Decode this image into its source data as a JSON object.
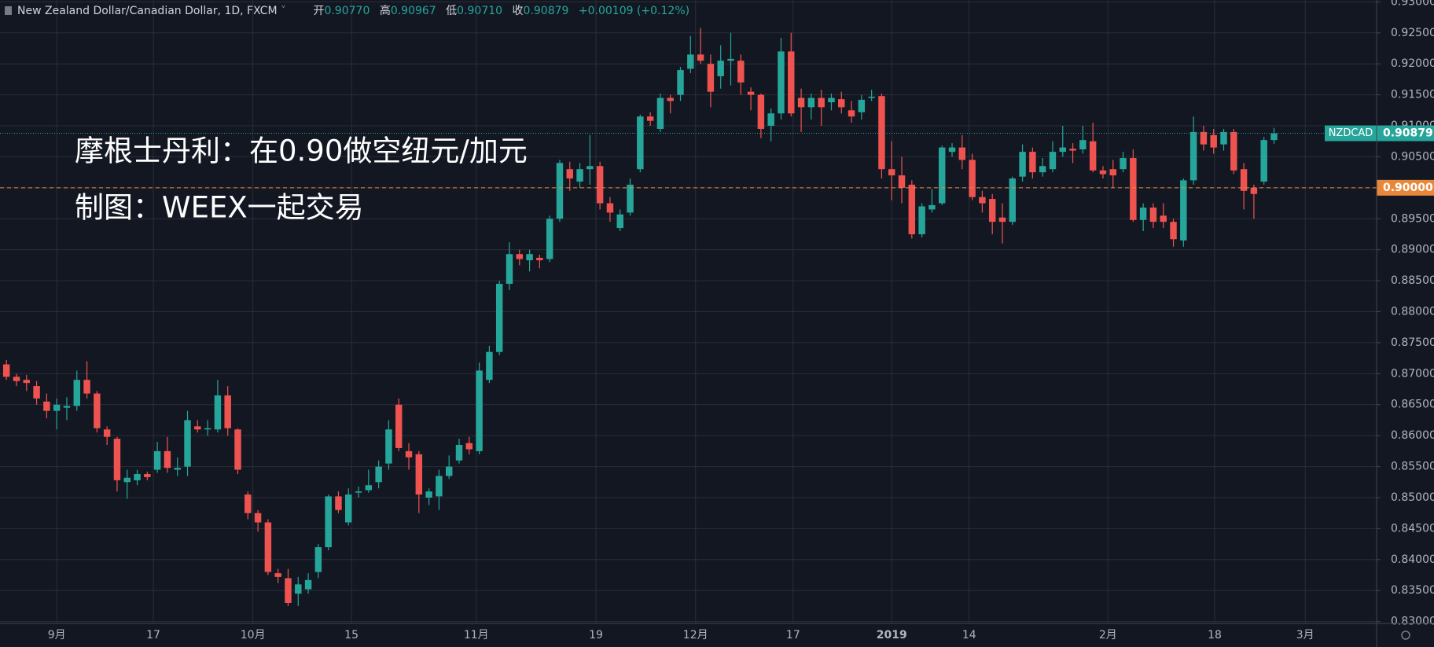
{
  "chart_data": {
    "type": "candlestick",
    "header": {
      "symbol": "New Zealand Dollar/Canadian Dollar, 1D, FXCM",
      "items": [
        {
          "label": "开",
          "value": "0.90770"
        },
        {
          "label": "高",
          "value": "0.90967"
        },
        {
          "label": "低",
          "value": "0.90710"
        },
        {
          "label": "收",
          "value": "0.90879"
        }
      ],
      "change": "+0.00109 (+0.12%)"
    },
    "annotations": [
      "摩根士丹利：在0.90做空纽元/加元",
      "制图：WEEX一起交易"
    ],
    "up_color": "#26a69a",
    "down_color": "#ef5350",
    "open": [
      0.8715,
      0.8695,
      0.869,
      0.868,
      0.8655,
      0.864,
      0.8645,
      0.8648,
      0.869,
      0.8668,
      0.861,
      0.8595,
      0.8525,
      0.8528,
      0.8538,
      0.8545,
      0.8575,
      0.8545,
      0.855,
      0.8615,
      0.861,
      0.861,
      0.8665,
      0.861,
      0.8505,
      0.8475,
      0.846,
      0.8378,
      0.837,
      0.8345,
      0.8352,
      0.838,
      0.842,
      0.8502,
      0.846,
      0.8508,
      0.8512,
      0.8525,
      0.8555,
      0.865,
      0.8575,
      0.857,
      0.85,
      0.8502,
      0.8535,
      0.856,
      0.8588,
      0.8575,
      0.869,
      0.8735,
      0.8845,
      0.8893,
      0.8883,
      0.8887,
      0.8885,
      0.895,
      0.903,
      0.901,
      0.903,
      0.9035,
      0.8975,
      0.8935,
      0.896,
      0.903,
      0.9115,
      0.9095,
      0.9145,
      0.915,
      0.9192,
      0.9215,
      0.92,
      0.918,
      0.9205,
      0.9205,
      0.9155,
      0.915,
      0.91,
      0.912,
      0.922,
      0.9145,
      0.913,
      0.9145,
      0.9138,
      0.9143,
      0.9125,
      0.9122,
      0.9145,
      0.9148,
      0.903,
      0.902,
      0.9005,
      0.8925,
      0.8965,
      0.8975,
      0.9058,
      0.9065,
      0.9045,
      0.8985,
      0.8982,
      0.8952,
      0.8945,
      0.9018,
      0.9058,
      0.9025,
      0.903,
      0.9058,
      0.9063,
      0.9062,
      0.9075,
      0.9028,
      0.903,
      0.903,
      0.9048,
      0.8948,
      0.8968,
      0.8955,
      0.8945,
      0.8915,
      0.9012,
      0.909,
      0.9085,
      0.907,
      0.909,
      0.903,
      0.9,
      0.901,
      0.9077
    ],
    "high": [
      0.8722,
      0.87,
      0.8698,
      0.8688,
      0.8668,
      0.866,
      0.8662,
      0.8705,
      0.872,
      0.8672,
      0.8615,
      0.8598,
      0.8545,
      0.8545,
      0.8542,
      0.859,
      0.8598,
      0.8565,
      0.864,
      0.8625,
      0.8625,
      0.869,
      0.868,
      0.8612,
      0.851,
      0.848,
      0.8465,
      0.8385,
      0.8385,
      0.8372,
      0.8378,
      0.8425,
      0.8505,
      0.851,
      0.8515,
      0.8518,
      0.8545,
      0.856,
      0.8625,
      0.866,
      0.8588,
      0.8575,
      0.8515,
      0.8545,
      0.8568,
      0.8595,
      0.8598,
      0.8718,
      0.8745,
      0.885,
      0.8912,
      0.89,
      0.89,
      0.8892,
      0.8955,
      0.9045,
      0.9042,
      0.904,
      0.9085,
      0.9042,
      0.8985,
      0.8965,
      0.9015,
      0.9118,
      0.9122,
      0.9152,
      0.915,
      0.9195,
      0.9245,
      0.9258,
      0.9215,
      0.923,
      0.925,
      0.9215,
      0.9162,
      0.9152,
      0.9128,
      0.9242,
      0.925,
      0.916,
      0.9152,
      0.9158,
      0.9152,
      0.9155,
      0.914,
      0.915,
      0.9158,
      0.9152,
      0.9075,
      0.905,
      0.9012,
      0.8975,
      0.8998,
      0.9068,
      0.9072,
      0.9085,
      0.9055,
      0.8995,
      0.899,
      0.8975,
      0.9018,
      0.907,
      0.9065,
      0.9048,
      0.9075,
      0.91,
      0.9072,
      0.91,
      0.9105,
      0.9035,
      0.9045,
      0.9058,
      0.9062,
      0.8975,
      0.8975,
      0.8975,
      0.895,
      0.9015,
      0.9115,
      0.91,
      0.9095,
      0.9095,
      0.9095,
      0.904,
      0.9005,
      0.9082,
      0.90967
    ],
    "low": [
      0.869,
      0.868,
      0.8672,
      0.865,
      0.8628,
      0.861,
      0.8625,
      0.864,
      0.866,
      0.8605,
      0.8585,
      0.851,
      0.8498,
      0.852,
      0.8528,
      0.854,
      0.854,
      0.8535,
      0.8535,
      0.8605,
      0.86,
      0.8605,
      0.86,
      0.8538,
      0.8465,
      0.8445,
      0.8375,
      0.8362,
      0.8325,
      0.8325,
      0.8345,
      0.837,
      0.8415,
      0.8475,
      0.8455,
      0.85,
      0.8508,
      0.8515,
      0.8545,
      0.8575,
      0.8545,
      0.8475,
      0.8488,
      0.848,
      0.853,
      0.8555,
      0.857,
      0.857,
      0.8685,
      0.873,
      0.8835,
      0.8875,
      0.8865,
      0.887,
      0.888,
      0.8945,
      0.8995,
      0.9,
      0.9005,
      0.8965,
      0.8945,
      0.893,
      0.8955,
      0.9025,
      0.91,
      0.909,
      0.912,
      0.914,
      0.9185,
      0.92,
      0.913,
      0.916,
      0.9165,
      0.915,
      0.9125,
      0.908,
      0.9075,
      0.911,
      0.9115,
      0.909,
      0.911,
      0.91,
      0.9125,
      0.912,
      0.9105,
      0.911,
      0.914,
      0.9015,
      0.898,
      0.8975,
      0.8918,
      0.892,
      0.896,
      0.8972,
      0.905,
      0.903,
      0.898,
      0.896,
      0.8925,
      0.891,
      0.894,
      0.901,
      0.9015,
      0.9018,
      0.9025,
      0.905,
      0.904,
      0.9055,
      0.9025,
      0.9015,
      0.9,
      0.9025,
      0.8945,
      0.893,
      0.8935,
      0.8935,
      0.8905,
      0.8905,
      0.9005,
      0.906,
      0.9055,
      0.906,
      0.9022,
      0.8965,
      0.895,
      0.9005,
      0.9071
    ],
    "close": [
      0.8695,
      0.8688,
      0.8685,
      0.866,
      0.864,
      0.865,
      0.8648,
      0.869,
      0.8668,
      0.8612,
      0.8598,
      0.8528,
      0.8532,
      0.8538,
      0.8533,
      0.8575,
      0.8548,
      0.8548,
      0.8625,
      0.861,
      0.8612,
      0.8665,
      0.8612,
      0.8545,
      0.8475,
      0.846,
      0.838,
      0.8372,
      0.833,
      0.836,
      0.8367,
      0.842,
      0.8502,
      0.848,
      0.8505,
      0.851,
      0.852,
      0.855,
      0.861,
      0.858,
      0.8565,
      0.8505,
      0.851,
      0.8535,
      0.855,
      0.8585,
      0.8578,
      0.8705,
      0.8735,
      0.8845,
      0.8893,
      0.8885,
      0.8893,
      0.8883,
      0.895,
      0.904,
      0.9015,
      0.903,
      0.9035,
      0.8975,
      0.896,
      0.8957,
      0.9005,
      0.9115,
      0.9108,
      0.9145,
      0.914,
      0.919,
      0.9215,
      0.9205,
      0.9155,
      0.9205,
      0.9208,
      0.917,
      0.915,
      0.9095,
      0.912,
      0.922,
      0.912,
      0.913,
      0.9145,
      0.913,
      0.9145,
      0.913,
      0.9115,
      0.9142,
      0.9147,
      0.903,
      0.902,
      0.9,
      0.8925,
      0.897,
      0.8972,
      0.9065,
      0.9065,
      0.9045,
      0.8985,
      0.8975,
      0.8945,
      0.8945,
      0.9015,
      0.9058,
      0.9025,
      0.9035,
      0.9058,
      0.9065,
      0.906,
      0.9077,
      0.9028,
      0.9022,
      0.902,
      0.9048,
      0.8948,
      0.8968,
      0.8945,
      0.8945,
      0.8917,
      0.9012,
      0.909,
      0.907,
      0.9065,
      0.909,
      0.9028,
      0.8995,
      0.899,
      0.9077,
      0.90879
    ],
    "xlim": [
      -0.64,
      136.2
    ],
    "xticks": [
      {
        "value": 5,
        "label": "9月"
      },
      {
        "value": 14.6,
        "label": "17"
      },
      {
        "value": 24.5,
        "label": "10月"
      },
      {
        "value": 34.3,
        "label": "15"
      },
      {
        "value": 46.7,
        "label": "11月"
      },
      {
        "value": 58.6,
        "label": "19"
      },
      {
        "value": 68.5,
        "label": "12月"
      },
      {
        "value": 78.2,
        "label": "17"
      },
      {
        "value": 88,
        "label": "2019"
      },
      {
        "value": 95.7,
        "label": "14"
      },
      {
        "value": 109.5,
        "label": "2月"
      },
      {
        "value": 120.1,
        "label": "18"
      },
      {
        "value": 129.1,
        "label": "3月"
      }
    ],
    "ylim": [
      0.8297,
      0.9303
    ],
    "yticks": [
      {
        "value": 0.83,
        "label": "0.83000"
      },
      {
        "value": 0.835,
        "label": "0.83500"
      },
      {
        "value": 0.84,
        "label": "0.84000"
      },
      {
        "value": 0.845,
        "label": "0.84500"
      },
      {
        "value": 0.85,
        "label": "0.85000"
      },
      {
        "value": 0.855,
        "label": "0.85500"
      },
      {
        "value": 0.86,
        "label": "0.86000"
      },
      {
        "value": 0.865,
        "label": "0.86500"
      },
      {
        "value": 0.87,
        "label": "0.87000"
      },
      {
        "value": 0.875,
        "label": "0.87500"
      },
      {
        "value": 0.88,
        "label": "0.88000"
      },
      {
        "value": 0.885,
        "label": "0.88500"
      },
      {
        "value": 0.89,
        "label": "0.89000"
      },
      {
        "value": 0.895,
        "label": "0.89500"
      },
      {
        "value": 0.9,
        "label": "0.90000"
      },
      {
        "value": 0.905,
        "label": "0.90500"
      },
      {
        "value": 0.91,
        "label": "0.91000"
      },
      {
        "value": 0.915,
        "label": "0.91500"
      },
      {
        "value": 0.92,
        "label": "0.92000"
      },
      {
        "value": 0.925,
        "label": "0.92500"
      },
      {
        "value": 0.93,
        "label": "0.93000"
      }
    ],
    "grid": true,
    "hline": {
      "value": 0.9,
      "label": "0.90000",
      "color": "#e8873a"
    },
    "last_price": {
      "symbol": "NZDCAD",
      "value": 0.90879,
      "label": "0.90879",
      "color": "#26a69a"
    }
  }
}
